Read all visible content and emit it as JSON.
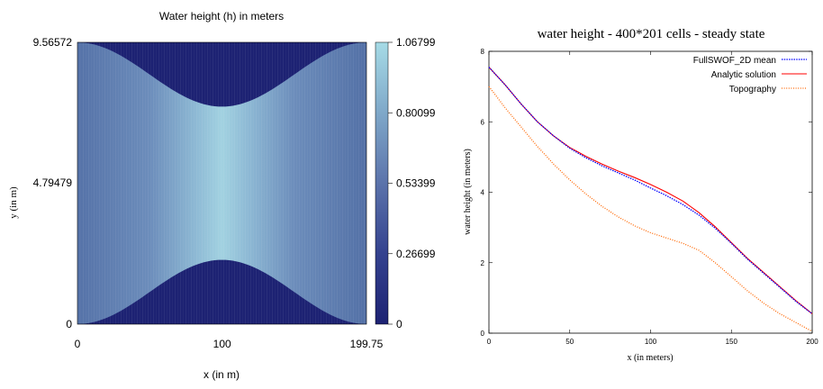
{
  "chart_data": [
    {
      "type": "heatmap",
      "title": "Water height (h) in meters",
      "xlabel": "x (in m)",
      "ylabel": "y (in m)",
      "xlim": [
        0,
        199.75
      ],
      "ylim": [
        0,
        9.56572
      ],
      "x_ticks": [
        "0",
        "100",
        "199.75"
      ],
      "y_ticks": [
        "0",
        "4.79479",
        "9.56572"
      ],
      "colorbar": {
        "range": [
          0,
          1.06799
        ],
        "ticks": [
          "0",
          "0.26699",
          "0.53399",
          "0.80099",
          "1.06799"
        ],
        "low_color": "#1d2273",
        "high_color": "#a6dbe6"
      },
      "dry_region_color": "#1d2273",
      "wet_extent": {
        "y_half_width_at_ends": 4.78,
        "y_half_width_at_center": 2.6,
        "y_center": 4.78286
      }
    },
    {
      "type": "line",
      "title": "water height - 400*201 cells - steady state",
      "xlabel": "x (in meters)",
      "ylabel": "water height (in meters)",
      "xlim": [
        0,
        200
      ],
      "ylim": [
        0,
        8
      ],
      "x_ticks": [
        "0",
        "50",
        "100",
        "150",
        "200"
      ],
      "y_ticks": [
        "0",
        "2",
        "4",
        "6",
        "8"
      ],
      "legend_position": "top-right",
      "series": [
        {
          "name": "FullSWOF_2D mean",
          "color": "#0000ff",
          "style": "dotted",
          "x": [
            0,
            10,
            20,
            30,
            40,
            50,
            60,
            70,
            80,
            90,
            100,
            110,
            120,
            130,
            140,
            150,
            160,
            170,
            180,
            190,
            200
          ],
          "y": [
            7.55,
            7.05,
            6.5,
            6.0,
            5.6,
            5.25,
            4.98,
            4.75,
            4.55,
            4.35,
            4.12,
            3.9,
            3.65,
            3.35,
            2.98,
            2.55,
            2.1,
            1.7,
            1.3,
            0.9,
            0.55
          ]
        },
        {
          "name": "Analytic solution",
          "color": "#ff0000",
          "style": "solid",
          "x": [
            0,
            10,
            20,
            30,
            40,
            50,
            60,
            70,
            80,
            90,
            100,
            110,
            120,
            130,
            140,
            150,
            160,
            170,
            180,
            190,
            200
          ],
          "y": [
            7.55,
            7.05,
            6.5,
            6.0,
            5.6,
            5.27,
            5.02,
            4.8,
            4.6,
            4.42,
            4.22,
            4.0,
            3.75,
            3.42,
            3.02,
            2.57,
            2.12,
            1.72,
            1.32,
            0.92,
            0.55
          ]
        },
        {
          "name": "Topography",
          "color": "#ff6600",
          "style": "dotted",
          "x": [
            0,
            10,
            20,
            30,
            40,
            50,
            60,
            70,
            80,
            90,
            100,
            110,
            120,
            130,
            140,
            150,
            160,
            170,
            180,
            190,
            200
          ],
          "y": [
            7.0,
            6.4,
            5.85,
            5.3,
            4.8,
            4.35,
            3.95,
            3.6,
            3.3,
            3.05,
            2.85,
            2.7,
            2.55,
            2.35,
            2.0,
            1.6,
            1.2,
            0.85,
            0.55,
            0.3,
            0.05
          ]
        }
      ]
    }
  ]
}
